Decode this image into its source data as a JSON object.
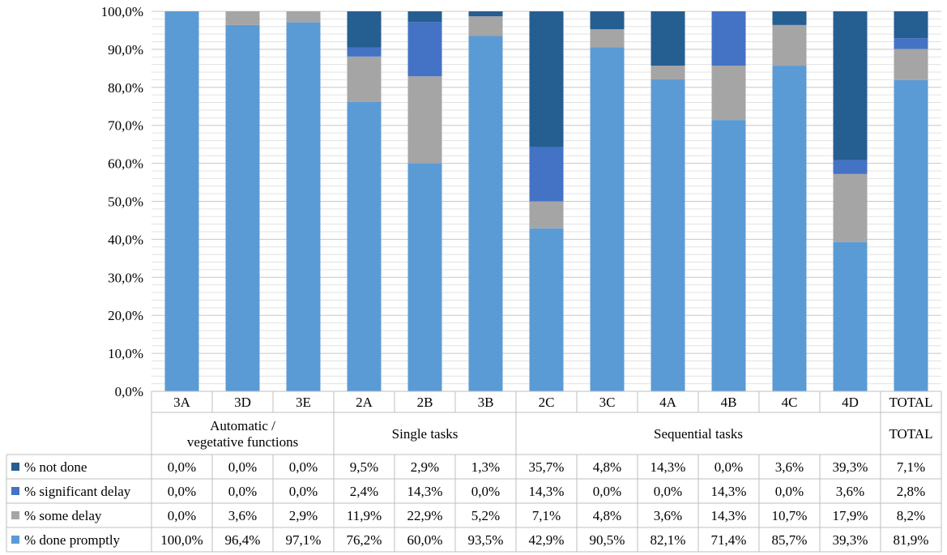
{
  "chart_data": {
    "type": "bar",
    "stacked": true,
    "title": "",
    "xlabel": "",
    "ylabel": "",
    "ylim": [
      0,
      100
    ],
    "yticks": [
      "0,0%",
      "10,0%",
      "20,0%",
      "30,0%",
      "40,0%",
      "50,0%",
      "60,0%",
      "70,0%",
      "80,0%",
      "90,0%",
      "100,0%"
    ],
    "categories": [
      "3A",
      "3D",
      "3E",
      "2A",
      "2B",
      "3B",
      "2C",
      "3C",
      "4A",
      "4B",
      "4C",
      "4D",
      "TOTAL"
    ],
    "groups": [
      {
        "label_lines": [
          "Automatic /",
          "vegetative functions"
        ],
        "span": 3
      },
      {
        "label_lines": [
          "Single tasks"
        ],
        "span": 3
      },
      {
        "label_lines": [
          "Sequential tasks"
        ],
        "span": 6
      },
      {
        "label_lines": [
          "TOTAL"
        ],
        "span": 1
      }
    ],
    "series": [
      {
        "name": "% not done",
        "color": "#255E91",
        "values": [
          0.0,
          0.0,
          0.0,
          9.5,
          2.9,
          1.3,
          35.7,
          4.8,
          14.3,
          0.0,
          3.6,
          39.3,
          7.1
        ],
        "labels": [
          "0,0%",
          "0,0%",
          "0,0%",
          "9,5%",
          "2,9%",
          "1,3%",
          "35,7%",
          "4,8%",
          "14,3%",
          "0,0%",
          "3,6%",
          "39,3%",
          "7,1%"
        ]
      },
      {
        "name": "% significant delay",
        "color": "#4472C4",
        "values": [
          0.0,
          0.0,
          0.0,
          2.4,
          14.3,
          0.0,
          14.3,
          0.0,
          0.0,
          14.3,
          0.0,
          3.6,
          2.8
        ],
        "labels": [
          "0,0%",
          "0,0%",
          "0,0%",
          "2,4%",
          "14,3%",
          "0,0%",
          "14,3%",
          "0,0%",
          "0,0%",
          "14,3%",
          "0,0%",
          "3,6%",
          "2,8%"
        ]
      },
      {
        "name": "% some delay",
        "color": "#A5A5A5",
        "values": [
          0.0,
          3.6,
          2.9,
          11.9,
          22.9,
          5.2,
          7.1,
          4.8,
          3.6,
          14.3,
          10.7,
          17.9,
          8.2
        ],
        "labels": [
          "0,0%",
          "3,6%",
          "2,9%",
          "11,9%",
          "22,9%",
          "5,2%",
          "7,1%",
          "4,8%",
          "3,6%",
          "14,3%",
          "10,7%",
          "17,9%",
          "8,2%"
        ]
      },
      {
        "name": "% done promptly",
        "color": "#5B9BD5",
        "values": [
          100.0,
          96.4,
          97.1,
          76.2,
          60.0,
          93.5,
          42.9,
          90.5,
          82.1,
          71.4,
          85.7,
          39.3,
          81.9
        ],
        "labels": [
          "100,0%",
          "96,4%",
          "97,1%",
          "76,2%",
          "60,0%",
          "93,5%",
          "42,9%",
          "90,5%",
          "82,1%",
          "71,4%",
          "85,7%",
          "39,3%",
          "81,9%"
        ]
      }
    ],
    "stack_order": [
      "% done promptly",
      "% some delay",
      "% significant delay",
      "% not done"
    ],
    "minor_grid_step": 2,
    "legend": "data-table-left"
  }
}
